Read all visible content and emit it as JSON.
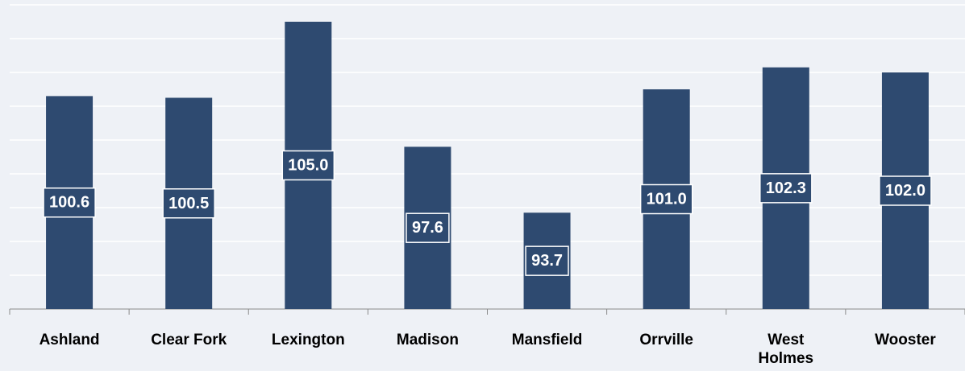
{
  "chart_data": {
    "type": "bar",
    "categories": [
      "Ashland",
      "Clear Fork",
      "Lexington",
      "Madison",
      "Mansfield",
      "Orrville",
      "West Holmes",
      "Wooster"
    ],
    "values": [
      100.6,
      100.5,
      105.0,
      97.6,
      93.7,
      101.0,
      102.3,
      102.0
    ],
    "value_labels": [
      "100.6",
      "100.5",
      "105.0",
      "97.6",
      "93.7",
      "101.0",
      "102.3",
      "102.0"
    ],
    "color": "#2e4a70",
    "ylim": [
      88,
      106
    ],
    "yticks": [
      90,
      92,
      94,
      96,
      98,
      100,
      102,
      104,
      106
    ],
    "grid": true
  }
}
